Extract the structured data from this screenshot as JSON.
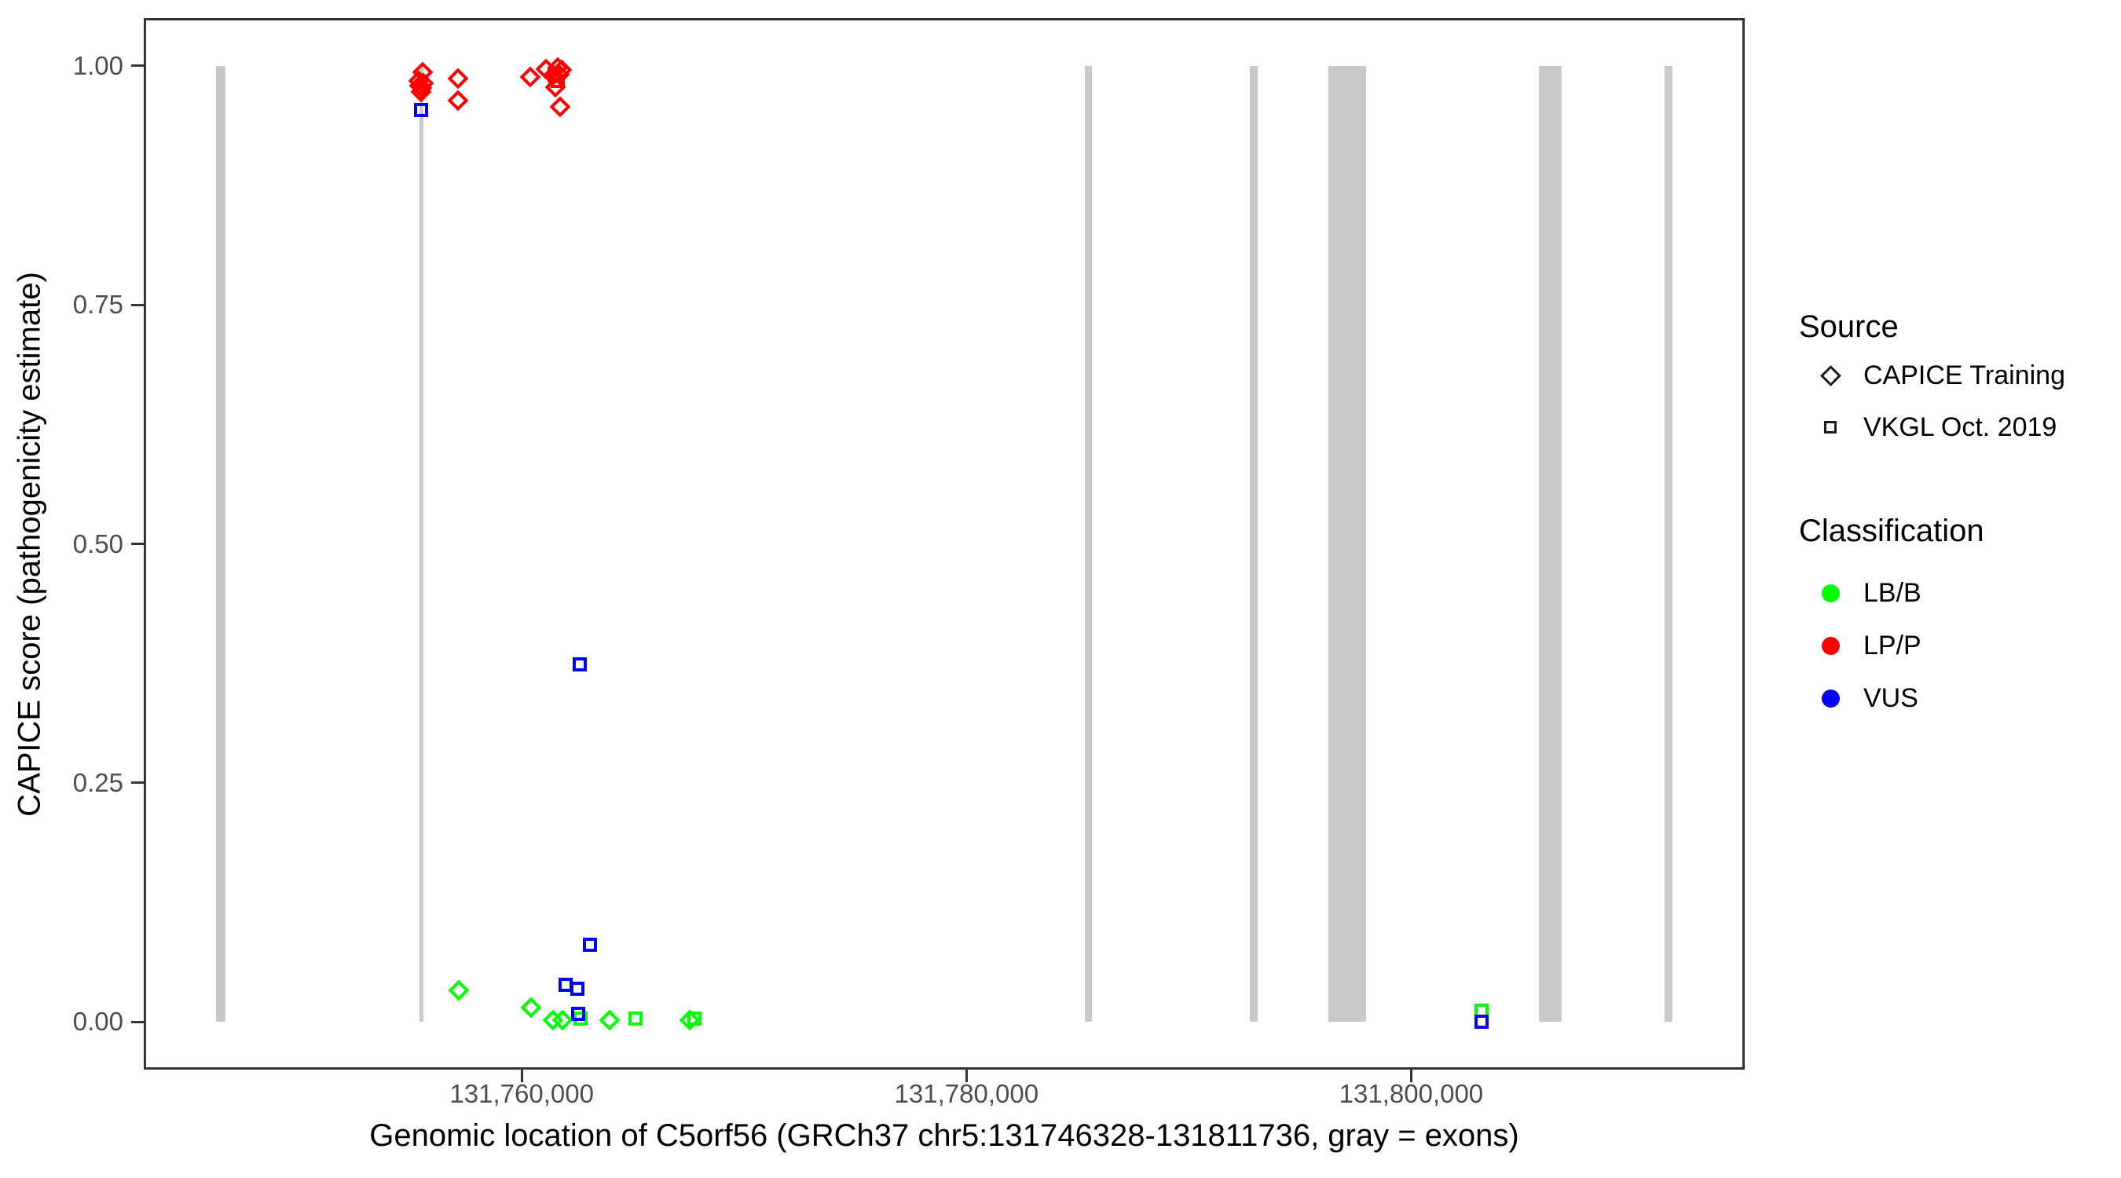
{
  "page": {
    "background": "#FFFFFF"
  },
  "chart_data": {
    "type": "scatter",
    "title": "",
    "xlabel": "Genomic location of C5orf56 (GRCh37 chr5:131746328-131811736, gray = exons)",
    "ylabel": "CAPICE score (pathogenicity estimate)",
    "grid": false,
    "legend_position": "right",
    "x_axis": {
      "min": 131743000,
      "max": 131815000,
      "ticks": [
        {
          "value": 131760000,
          "label": "131,760,000"
        },
        {
          "value": 131780000,
          "label": "131,780,000"
        },
        {
          "value": 131800000,
          "label": "131,800,000"
        }
      ]
    },
    "y_axis": {
      "min": -0.05,
      "max": 1.05,
      "ticks": [
        {
          "value": 1.0,
          "label": "1.00"
        },
        {
          "value": 0.75,
          "label": "0.75"
        },
        {
          "value": 0.5,
          "label": "0.50"
        },
        {
          "value": 0.25,
          "label": "0.25"
        },
        {
          "value": 0.0,
          "label": "0.00"
        }
      ]
    },
    "exon_color": "#C9C9C9",
    "exons": [
      {
        "start": 131746235,
        "end": 131746660
      },
      {
        "start": 131755414,
        "end": 131755591
      },
      {
        "start": 131785315,
        "end": 131785635
      },
      {
        "start": 131792730,
        "end": 131793082
      },
      {
        "start": 131796260,
        "end": 131797955
      },
      {
        "start": 131805756,
        "end": 131806780
      },
      {
        "start": 131811405,
        "end": 131811758
      }
    ],
    "series": [
      {
        "name": "LB/B - CAPICE Training",
        "source": "CAPICE Training",
        "classification": "LB/B",
        "shape": "diamond",
        "color": "#00FF00",
        "points": [
          [
            131757180,
            0.033
          ],
          [
            131760425,
            0.015
          ],
          [
            131761415,
            0.002
          ],
          [
            131761840,
            0.002
          ],
          [
            131763955,
            0.002
          ],
          [
            131767560,
            0.002
          ]
        ]
      },
      {
        "name": "LB/B - VKGL Oct. 2019",
        "source": "VKGL Oct. 2019",
        "classification": "LB/B",
        "shape": "square",
        "color": "#00FF00",
        "points": [
          [
            131762650,
            0.003
          ],
          [
            131765120,
            0.003
          ],
          [
            131767770,
            0.003
          ],
          [
            131803180,
            0.012
          ]
        ]
      },
      {
        "name": "LP/P - CAPICE Training",
        "source": "CAPICE Training",
        "classification": "LP/P",
        "shape": "diamond",
        "color": "#FF0000",
        "points": [
          [
            131755555,
            0.993
          ],
          [
            131755380,
            0.984
          ],
          [
            131755590,
            0.982
          ],
          [
            131755415,
            0.979
          ],
          [
            131755520,
            0.977
          ],
          [
            131755485,
            0.973
          ],
          [
            131757145,
            0.987
          ],
          [
            131757145,
            0.964
          ],
          [
            131760390,
            0.988
          ],
          [
            131761095,
            0.997
          ],
          [
            131761625,
            0.998
          ],
          [
            131761800,
            0.996
          ],
          [
            131761415,
            0.99
          ],
          [
            131761695,
            0.991
          ],
          [
            131761520,
            0.978
          ],
          [
            131761730,
            0.957
          ]
        ]
      },
      {
        "name": "LP/P - VKGL Oct. 2019",
        "source": "VKGL Oct. 2019",
        "classification": "LP/P",
        "shape": "square",
        "color": "#FF0000",
        "points": [
          [
            131761480,
            0.99
          ],
          [
            131761620,
            0.984
          ]
        ]
      },
      {
        "name": "VUS - VKGL Oct. 2019",
        "source": "VKGL Oct. 2019",
        "classification": "VUS",
        "shape": "square",
        "color": "#0000FF",
        "points": [
          [
            131755485,
            0.954
          ],
          [
            131762615,
            0.374
          ],
          [
            131763075,
            0.081
          ],
          [
            131761980,
            0.039
          ],
          [
            131762510,
            0.035
          ],
          [
            131762545,
            0.008
          ],
          [
            131803180,
            0.0
          ]
        ]
      }
    ]
  },
  "legend": {
    "source": {
      "title": "Source",
      "items": [
        {
          "label": "CAPICE Training",
          "shape": "diamond"
        },
        {
          "label": "VKGL Oct. 2019",
          "shape": "square"
        }
      ]
    },
    "classification": {
      "title": "Classification",
      "items": [
        {
          "label": "LB/B",
          "color": "#00FF00"
        },
        {
          "label": "LP/P",
          "color": "#FF0000"
        },
        {
          "label": "VUS",
          "color": "#0000FF"
        }
      ]
    }
  }
}
